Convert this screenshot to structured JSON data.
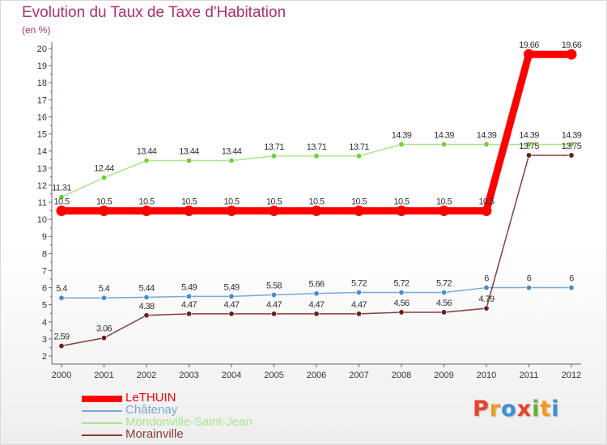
{
  "header": {
    "title": "Evolution du Taux de Taxe d'Habitation",
    "subtitle": "(en %)"
  },
  "logo": {
    "letters": [
      "P",
      "r",
      "o",
      "x",
      "i",
      "t",
      "i"
    ],
    "colors": [
      "#e8422a",
      "#f29a1f",
      "#3a8fd6",
      "#e8422a",
      "#65b32e",
      "#f29a1f",
      "#3a8fd6"
    ]
  },
  "chart_data": {
    "type": "line",
    "title": "Evolution du Taux de Taxe d'Habitation",
    "subtitle": "(en %)",
    "xlabel": "",
    "ylabel": "",
    "x": [
      "2000",
      "2001",
      "2002",
      "2003",
      "2004",
      "2005",
      "2006",
      "2007",
      "2008",
      "2009",
      "2010",
      "2011",
      "2012"
    ],
    "yticks": [
      "2",
      "3",
      "4",
      "5",
      "6",
      "7",
      "8",
      "9",
      "10",
      "11",
      "12",
      "13",
      "14",
      "15",
      "16",
      "17",
      "18",
      "19",
      "20"
    ],
    "ylim": [
      2,
      20
    ],
    "grid": false,
    "legend_position": "bottom-left",
    "series": [
      {
        "name": "LeTHUIN",
        "color": "#ff0000",
        "width": "thick",
        "values": [
          10.5,
          10.5,
          10.5,
          10.5,
          10.5,
          10.5,
          10.5,
          10.5,
          10.5,
          10.5,
          10.5,
          19.66,
          19.66
        ],
        "labels": [
          "10.5",
          "10.5",
          "10.5",
          "10.5",
          "10.5",
          "10.5",
          "10.5",
          "10.5",
          "10.5",
          "10.5",
          "10.5",
          "19.66",
          "19.66"
        ]
      },
      {
        "name": "Châtenay",
        "color": "#7aa7d8",
        "marker_color": "#4a8bd0",
        "width": "thin",
        "values": [
          5.4,
          5.4,
          5.44,
          5.49,
          5.49,
          5.58,
          5.66,
          5.72,
          5.72,
          5.72,
          6,
          6,
          6
        ],
        "labels": [
          "5.4",
          "5.4",
          "5.44",
          "5.49",
          "5.49",
          "5.58",
          "5.66",
          "5.72",
          "5.72",
          "5.72",
          "6",
          "6",
          "6"
        ]
      },
      {
        "name": "Mondonville-Saint-Jean",
        "color": "#a9e58a",
        "marker_color": "#6fd03a",
        "width": "thin",
        "values": [
          11.31,
          12.44,
          13.44,
          13.44,
          13.44,
          13.71,
          13.71,
          13.71,
          14.39,
          14.39,
          14.39,
          14.39,
          14.39
        ],
        "labels": [
          "11.31",
          "12.44",
          "13.44",
          "13.44",
          "13.44",
          "13.71",
          "13.71",
          "13.71",
          "14.39",
          "14.39",
          "14.39",
          "14.39",
          "14.39"
        ]
      },
      {
        "name": "Morainville",
        "color": "#8b3a3a",
        "marker_color": "#6b1e1e",
        "width": "thin",
        "values": [
          2.59,
          3.06,
          4.38,
          4.47,
          4.47,
          4.47,
          4.47,
          4.47,
          4.56,
          4.56,
          4.79,
          13.75,
          13.75
        ],
        "labels": [
          "2.59",
          "3.06",
          "4.38",
          "4.47",
          "4.47",
          "4.47",
          "4.47",
          "4.47",
          "4.56",
          "4.56",
          "4.79",
          "13.75",
          "13.75"
        ]
      }
    ]
  }
}
